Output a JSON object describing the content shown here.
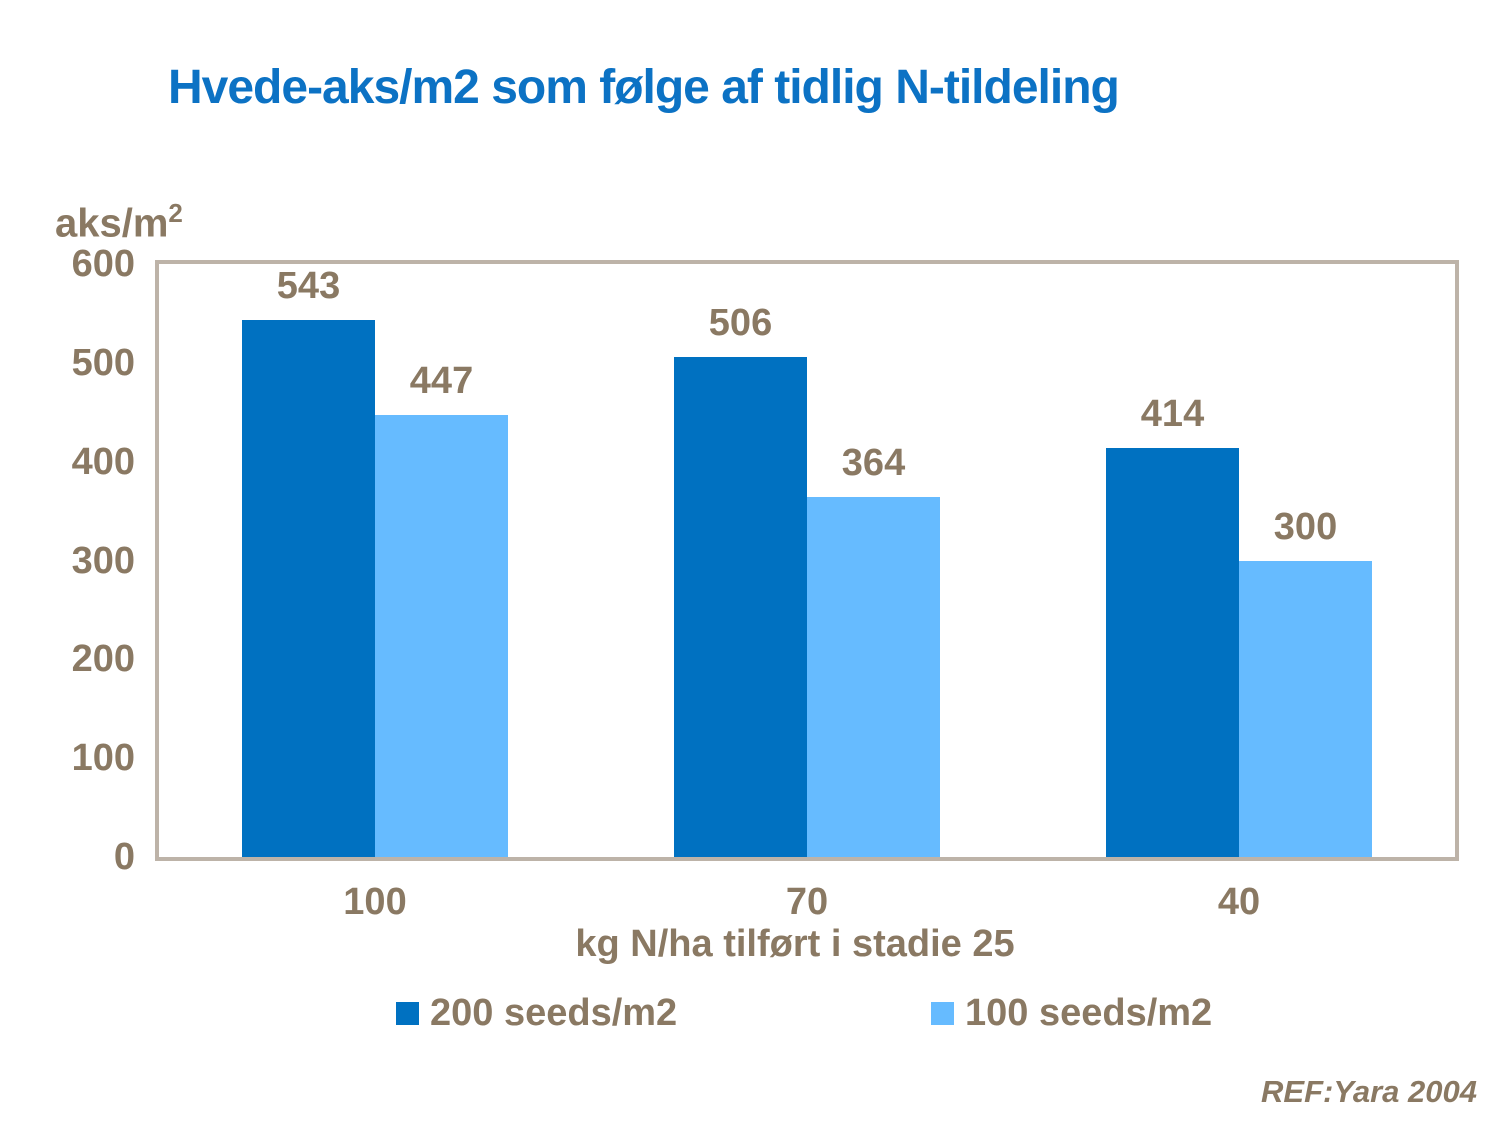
{
  "title": "Hvede-aks/m2 som følge af tidlig N-tildeling",
  "y_axis_label": {
    "base": "aks/m",
    "sup": "2"
  },
  "x_axis_title": "kg N/ha tilført i stadie 25",
  "ref_note": "REF:Yara 2004",
  "colors": {
    "title_text": "#0C72C4",
    "chart_text": "#8A7963",
    "plot_border": "#BDB3A8",
    "series1": "#0071C1",
    "series2": "#66BBFF",
    "background": "#FFFFFF"
  },
  "chart_data": {
    "type": "bar",
    "title": "Hvede-aks/m2 som følge af tidlig N-tildeling",
    "categories": [
      "100",
      "70",
      "40"
    ],
    "series": [
      {
        "name": "200 seeds/m2",
        "color": "#0071C1",
        "values": [
          543,
          506,
          414
        ]
      },
      {
        "name": "100 seeds/m2",
        "color": "#66BBFF",
        "values": [
          447,
          364,
          300
        ]
      }
    ],
    "xlabel": "kg N/ha tilført i stadie 25",
    "ylabel": "aks/m2",
    "ylim": [
      0,
      600
    ],
    "yticks": [
      600,
      500,
      400,
      300,
      200,
      100,
      0
    ],
    "grid": false,
    "bar_value_labels": true,
    "legend_position": "bottom"
  }
}
